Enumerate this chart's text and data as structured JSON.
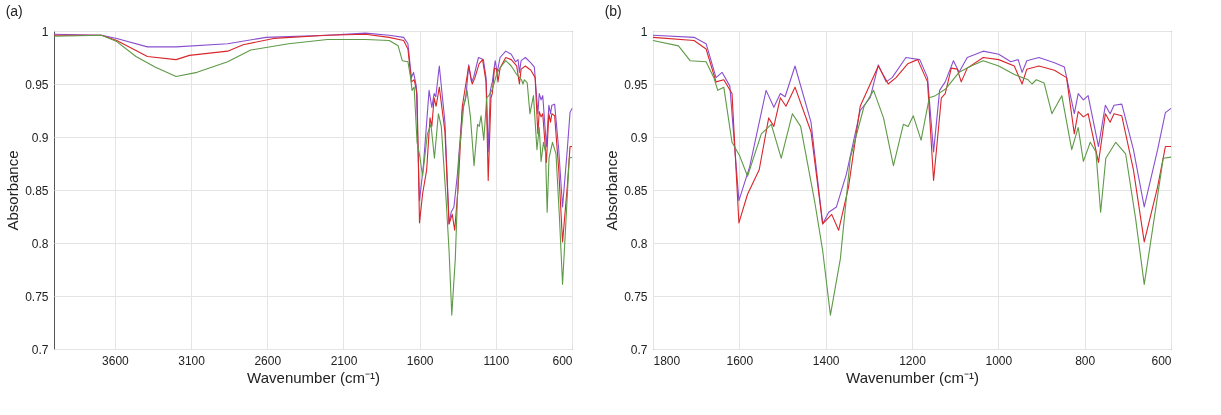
{
  "chart_data": [
    {
      "type": "line",
      "title": "(a)",
      "xlabel": "Wavenumber (cm⁻¹)",
      "ylabel": "Absorbance",
      "xlim": [
        4000,
        600
      ],
      "ylim": [
        0.7,
        1
      ],
      "xticks": [
        3600,
        3100,
        2600,
        2100,
        1600,
        1100,
        600
      ],
      "yticks": [
        0.7,
        0.75,
        0.8,
        0.85,
        0.9,
        0.95,
        1
      ],
      "grid": true,
      "series": [
        {
          "color": "#8a4fd0",
          "x": [
            4000,
            3688,
            3588,
            3387,
            3199,
            2860,
            2608,
            2206,
            1955,
            1800,
            1705,
            1677,
            1654,
            1640,
            1622,
            1601,
            1576,
            1538,
            1520,
            1505,
            1494,
            1471,
            1434,
            1407,
            1393,
            1375,
            1352,
            1320,
            1297,
            1278,
            1260,
            1246,
            1214,
            1182,
            1164,
            1150,
            1136,
            1123,
            1104,
            1091,
            1072,
            1035,
            999,
            971,
            954,
            945,
            934,
            906,
            870,
            847,
            824,
            815,
            803,
            792,
            768,
            752,
            741,
            732,
            714,
            687,
            662,
            631,
            613,
            600
          ],
          "values": [
            0.997,
            0.996,
            0.993,
            0.985,
            0.985,
            0.988,
            0.994,
            0.996,
            0.998,
            0.996,
            0.994,
            0.988,
            0.956,
            0.961,
            0.948,
            0.84,
            0.872,
            0.944,
            0.928,
            0.941,
            0.938,
            0.967,
            0.914,
            0.818,
            0.829,
            0.834,
            0.865,
            0.925,
            0.937,
            0.968,
            0.952,
            0.956,
            0.975,
            0.973,
            0.956,
            0.886,
            0.944,
            0.952,
            0.972,
            0.961,
            0.975,
            0.981,
            0.978,
            0.971,
            0.973,
            0.961,
            0.972,
            0.975,
            0.97,
            0.966,
            0.922,
            0.941,
            0.935,
            0.939,
            0.891,
            0.93,
            0.922,
            0.93,
            0.931,
            0.888,
            0.834,
            0.888,
            0.923,
            0.927
          ]
        },
        {
          "color": "#d9262a",
          "x": [
            4000,
            3688,
            3588,
            3387,
            3199,
            3111,
            2860,
            2759,
            2558,
            2206,
            1955,
            1800,
            1705,
            1677,
            1654,
            1636,
            1617,
            1601,
            1581,
            1554,
            1532,
            1520,
            1505,
            1492,
            1471,
            1434,
            1407,
            1386,
            1370,
            1347,
            1320,
            1278,
            1255,
            1237,
            1210,
            1187,
            1164,
            1150,
            1132,
            1123,
            1109,
            1095,
            1086,
            1072,
            1035,
            999,
            963,
            945,
            934,
            906,
            870,
            842,
            824,
            815,
            803,
            792,
            768,
            752,
            741,
            732,
            714,
            687,
            662,
            631,
            613,
            600
          ],
          "values": [
            0.996,
            0.996,
            0.991,
            0.976,
            0.973,
            0.977,
            0.981,
            0.987,
            0.993,
            0.996,
            0.997,
            0.994,
            0.991,
            0.983,
            0.952,
            0.954,
            0.941,
            0.819,
            0.846,
            0.869,
            0.918,
            0.91,
            0.937,
            0.929,
            0.947,
            0.905,
            0.818,
            0.827,
            0.812,
            0.853,
            0.929,
            0.967,
            0.95,
            0.956,
            0.969,
            0.973,
            0.952,
            0.859,
            0.937,
            0.941,
            0.965,
            0.964,
            0.952,
            0.965,
            0.975,
            0.973,
            0.967,
            0.95,
            0.964,
            0.967,
            0.963,
            0.956,
            0.903,
            0.924,
            0.919,
            0.922,
            0.876,
            0.922,
            0.914,
            0.922,
            0.92,
            0.869,
            0.801,
            0.853,
            0.891,
            0.891
          ]
        },
        {
          "color": "#5e9a47",
          "x": [
            4000,
            3688,
            3588,
            3462,
            3337,
            3199,
            3061,
            2860,
            2709,
            2459,
            2206,
            1955,
            1800,
            1741,
            1714,
            1677,
            1659,
            1650,
            1636,
            1617,
            1599,
            1581,
            1549,
            1526,
            1503,
            1477,
            1458,
            1425,
            1407,
            1389,
            1366,
            1343,
            1311,
            1289,
            1266,
            1243,
            1220,
            1209,
            1197,
            1179,
            1160,
            1146,
            1123,
            1091,
            1063,
            1035,
            999,
            963,
            931,
            922,
            912,
            894,
            876,
            853,
            830,
            815,
            803,
            787,
            774,
            763,
            751,
            728,
            705,
            682,
            662,
            636,
            618,
            600
          ],
          "values": [
            0.995,
            0.996,
            0.99,
            0.976,
            0.966,
            0.957,
            0.961,
            0.971,
            0.982,
            0.988,
            0.992,
            0.992,
            0.991,
            0.986,
            0.972,
            0.971,
            0.956,
            0.944,
            0.947,
            0.895,
            0.882,
            0.863,
            0.903,
            0.912,
            0.88,
            0.922,
            0.91,
            0.838,
            0.793,
            0.732,
            0.785,
            0.88,
            0.929,
            0.944,
            0.918,
            0.873,
            0.912,
            0.91,
            0.92,
            0.897,
            0.937,
            0.939,
            0.945,
            0.961,
            0.967,
            0.972,
            0.967,
            0.959,
            0.954,
            0.95,
            0.954,
            0.951,
            0.922,
            0.939,
            0.888,
            0.909,
            0.877,
            0.895,
            0.886,
            0.829,
            0.88,
            0.895,
            0.884,
            0.823,
            0.761,
            0.831,
            0.88,
            0.881
          ]
        }
      ]
    },
    {
      "type": "line",
      "title": "(b)",
      "xlabel": "Wavenumber (cm⁻¹)",
      "ylabel": "Absorbance",
      "xlim": [
        1800,
        600
      ],
      "ylim": [
        0.7,
        1
      ],
      "xticks": [
        1800,
        1600,
        1400,
        1200,
        1000,
        800,
        600
      ],
      "yticks": [
        0.7,
        0.75,
        0.8,
        0.85,
        0.9,
        0.95,
        1
      ],
      "grid": true,
      "series": [
        {
          "color": "#8a4fd0",
          "x": [
            1800,
            1705,
            1677,
            1654,
            1640,
            1622,
            1601,
            1576,
            1538,
            1520,
            1505,
            1494,
            1471,
            1434,
            1407,
            1393,
            1375,
            1352,
            1320,
            1297,
            1278,
            1260,
            1246,
            1214,
            1182,
            1164,
            1150,
            1136,
            1123,
            1104,
            1091,
            1072,
            1035,
            999,
            971,
            954,
            945,
            934,
            906,
            870,
            847,
            824,
            815,
            803,
            792,
            768,
            752,
            741,
            732,
            714,
            687,
            662,
            631,
            613,
            600
          ],
          "values": [
            0.996,
            0.994,
            0.988,
            0.956,
            0.961,
            0.948,
            0.84,
            0.872,
            0.944,
            0.928,
            0.941,
            0.938,
            0.967,
            0.914,
            0.818,
            0.829,
            0.834,
            0.865,
            0.925,
            0.937,
            0.968,
            0.952,
            0.956,
            0.975,
            0.973,
            0.956,
            0.886,
            0.944,
            0.952,
            0.972,
            0.961,
            0.975,
            0.981,
            0.978,
            0.971,
            0.973,
            0.961,
            0.972,
            0.975,
            0.97,
            0.966,
            0.922,
            0.941,
            0.935,
            0.939,
            0.891,
            0.93,
            0.922,
            0.93,
            0.931,
            0.888,
            0.834,
            0.888,
            0.923,
            0.927
          ]
        },
        {
          "color": "#d9262a",
          "x": [
            1800,
            1705,
            1677,
            1654,
            1636,
            1617,
            1601,
            1581,
            1554,
            1532,
            1520,
            1505,
            1492,
            1471,
            1434,
            1407,
            1386,
            1370,
            1347,
            1320,
            1278,
            1255,
            1237,
            1210,
            1187,
            1164,
            1150,
            1132,
            1123,
            1109,
            1095,
            1086,
            1072,
            1035,
            999,
            963,
            945,
            934,
            906,
            870,
            842,
            824,
            815,
            803,
            792,
            768,
            752,
            741,
            732,
            714,
            687,
            662,
            631,
            613,
            600
          ],
          "values": [
            0.994,
            0.991,
            0.983,
            0.952,
            0.954,
            0.941,
            0.819,
            0.846,
            0.869,
            0.918,
            0.91,
            0.937,
            0.929,
            0.947,
            0.905,
            0.818,
            0.827,
            0.812,
            0.853,
            0.929,
            0.967,
            0.95,
            0.956,
            0.969,
            0.973,
            0.952,
            0.859,
            0.937,
            0.941,
            0.965,
            0.964,
            0.952,
            0.965,
            0.975,
            0.973,
            0.967,
            0.95,
            0.964,
            0.967,
            0.963,
            0.956,
            0.903,
            0.924,
            0.919,
            0.922,
            0.876,
            0.922,
            0.914,
            0.922,
            0.92,
            0.869,
            0.801,
            0.853,
            0.891,
            0.891
          ]
        },
        {
          "color": "#5e9a47",
          "x": [
            1800,
            1741,
            1714,
            1677,
            1659,
            1650,
            1636,
            1617,
            1599,
            1581,
            1549,
            1526,
            1503,
            1477,
            1458,
            1425,
            1407,
            1389,
            1366,
            1343,
            1311,
            1289,
            1266,
            1243,
            1220,
            1209,
            1197,
            1179,
            1160,
            1146,
            1123,
            1091,
            1063,
            1035,
            999,
            963,
            931,
            922,
            912,
            894,
            876,
            853,
            830,
            815,
            803,
            787,
            774,
            763,
            751,
            728,
            705,
            682,
            662,
            636,
            618,
            600
          ],
          "values": [
            0.991,
            0.986,
            0.972,
            0.971,
            0.956,
            0.944,
            0.947,
            0.895,
            0.882,
            0.863,
            0.903,
            0.912,
            0.88,
            0.922,
            0.91,
            0.838,
            0.793,
            0.732,
            0.785,
            0.88,
            0.929,
            0.944,
            0.918,
            0.873,
            0.912,
            0.91,
            0.92,
            0.897,
            0.937,
            0.939,
            0.945,
            0.961,
            0.967,
            0.972,
            0.967,
            0.959,
            0.954,
            0.95,
            0.954,
            0.951,
            0.922,
            0.939,
            0.888,
            0.909,
            0.877,
            0.895,
            0.886,
            0.829,
            0.88,
            0.895,
            0.884,
            0.823,
            0.761,
            0.831,
            0.88,
            0.881
          ]
        }
      ]
    }
  ]
}
